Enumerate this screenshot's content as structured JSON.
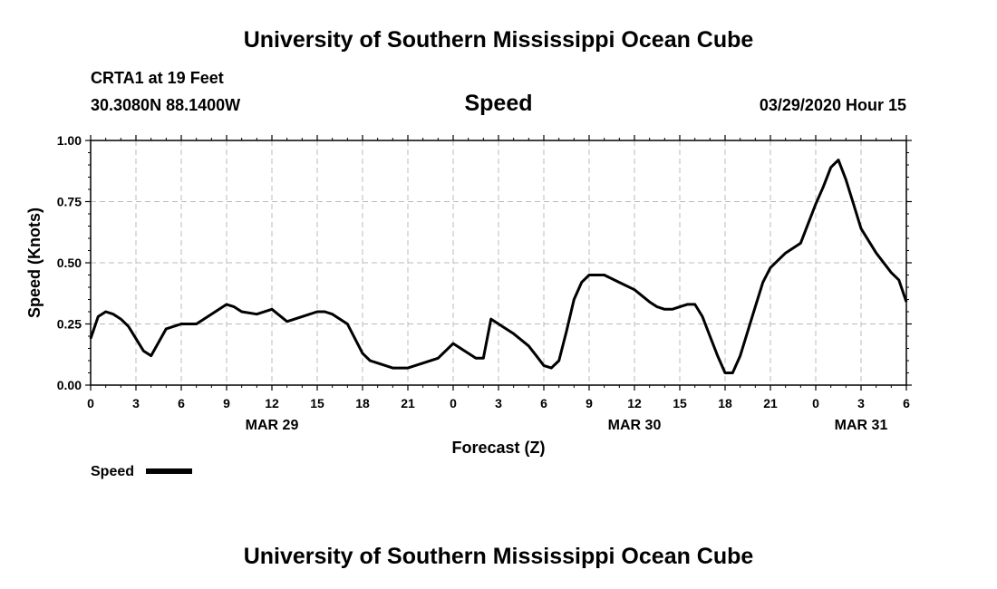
{
  "header": {
    "title": "University of Southern Mississippi Ocean Cube",
    "station": "CRTA1 at 19 Feet",
    "coords": "30.3080N 88.1400W",
    "datetime": "03/29/2020 Hour 15"
  },
  "footer": {
    "title": "University of Southern Mississippi Ocean Cube"
  },
  "chart_data": {
    "type": "line",
    "title": "Speed",
    "xlabel": "Forecast (Z)",
    "ylabel": "Speed (Knots)",
    "ylim": [
      0,
      1
    ],
    "xlim": [
      0,
      54
    ],
    "y_ticks": [
      "0.00",
      "0.25",
      "0.50",
      "0.75",
      "1.00"
    ],
    "y_tick_values": [
      0,
      0.25,
      0.5,
      0.75,
      1.0
    ],
    "x_ticks": [
      "0",
      "3",
      "6",
      "9",
      "12",
      "15",
      "18",
      "21",
      "0",
      "3",
      "6",
      "9",
      "12",
      "15",
      "18",
      "21",
      "0",
      "3",
      "6"
    ],
    "date_labels": [
      {
        "label": "MAR 29",
        "hour": 12
      },
      {
        "label": "MAR 30",
        "hour": 36
      },
      {
        "label": "MAR 31",
        "hour": 51
      }
    ],
    "grid": true,
    "legend": "bottom-left",
    "series": [
      {
        "name": "Speed",
        "color": "#000000",
        "x": [
          0,
          0.5,
          1,
          1.5,
          2,
          2.5,
          3,
          3.5,
          4,
          5,
          6,
          7,
          8,
          9,
          9.5,
          10,
          11,
          12,
          13,
          14,
          15,
          15.5,
          16,
          17,
          18,
          18.5,
          19,
          20,
          20.5,
          21,
          22,
          23,
          24,
          24.5,
          25,
          25.5,
          26,
          26.5,
          27,
          28,
          29,
          29.5,
          30,
          30.5,
          31,
          31.5,
          32,
          32.5,
          33,
          34,
          35,
          36,
          37,
          37.5,
          38,
          38.5,
          39,
          39.5,
          40,
          40.5,
          41,
          41.5,
          42,
          42.5,
          43,
          43.5,
          44,
          44.5,
          45,
          46,
          47,
          48,
          48.5,
          49,
          49.5,
          50,
          50.5,
          51,
          52,
          53,
          53.5,
          54
        ],
        "values": [
          0.19,
          0.28,
          0.3,
          0.29,
          0.27,
          0.24,
          0.19,
          0.14,
          0.12,
          0.23,
          0.25,
          0.25,
          0.29,
          0.33,
          0.32,
          0.3,
          0.29,
          0.31,
          0.26,
          0.28,
          0.3,
          0.3,
          0.29,
          0.25,
          0.13,
          0.1,
          0.09,
          0.07,
          0.07,
          0.07,
          0.09,
          0.11,
          0.17,
          0.15,
          0.13,
          0.11,
          0.11,
          0.27,
          0.25,
          0.21,
          0.16,
          0.12,
          0.08,
          0.07,
          0.1,
          0.22,
          0.35,
          0.42,
          0.45,
          0.45,
          0.42,
          0.39,
          0.34,
          0.32,
          0.31,
          0.31,
          0.32,
          0.33,
          0.33,
          0.28,
          0.2,
          0.12,
          0.05,
          0.05,
          0.12,
          0.22,
          0.32,
          0.42,
          0.48,
          0.54,
          0.58,
          0.74,
          0.81,
          0.89,
          0.92,
          0.84,
          0.74,
          0.64,
          0.54,
          0.46,
          0.43,
          0.34
        ]
      }
    ],
    "legend_label": "Speed"
  }
}
